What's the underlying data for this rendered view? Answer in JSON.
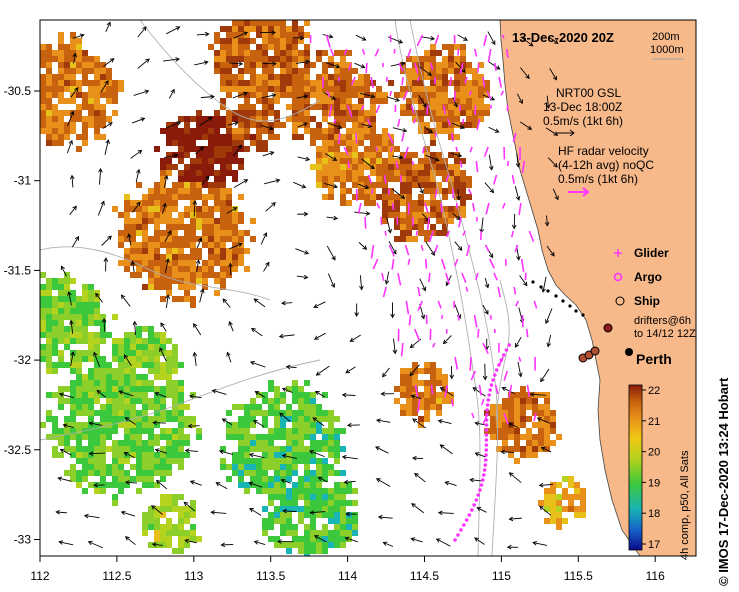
{
  "map": {
    "title": "13-Dec-2020 20Z",
    "isobath_labels": [
      "200m",
      "1000m"
    ],
    "x_ticks": [
      "112",
      "112.5",
      "113",
      "113.5",
      "114",
      "114.5",
      "115",
      "115.5",
      "116"
    ],
    "y_ticks": [
      "-30.5",
      "-31",
      "-31.5",
      "-32",
      "-32.5",
      "-33"
    ],
    "place_label": "Perth",
    "credit": "© IMOS 17-Dec-2020 13:24 Hobart"
  },
  "legend": {
    "gsl_title": "NRT00 GSL",
    "gsl_time": "13-Dec 18:00Z",
    "gsl_scale": "0.5m/s (1kt 6h)",
    "hf_title": "HF radar velocity",
    "hf_avg": "(4-12h avg) noQC",
    "hf_scale": "0.5m/s (1kt 6h)",
    "glider": "Glider",
    "argo": "Argo",
    "ship": "Ship",
    "drifters_1": "drifters@6h",
    "drifters_2": "to 14/12 12Z"
  },
  "colorbar": {
    "ticks": [
      "22",
      "21",
      "20",
      "19",
      "18",
      "17"
    ],
    "label": "4h comp, p50, All Sats",
    "min": 17,
    "max": 22
  },
  "colors": {
    "land": "#f7b98a",
    "glider": "#ff33ff",
    "hf_arrow": "#ff33ff",
    "ship": "#8b1a1a"
  }
}
